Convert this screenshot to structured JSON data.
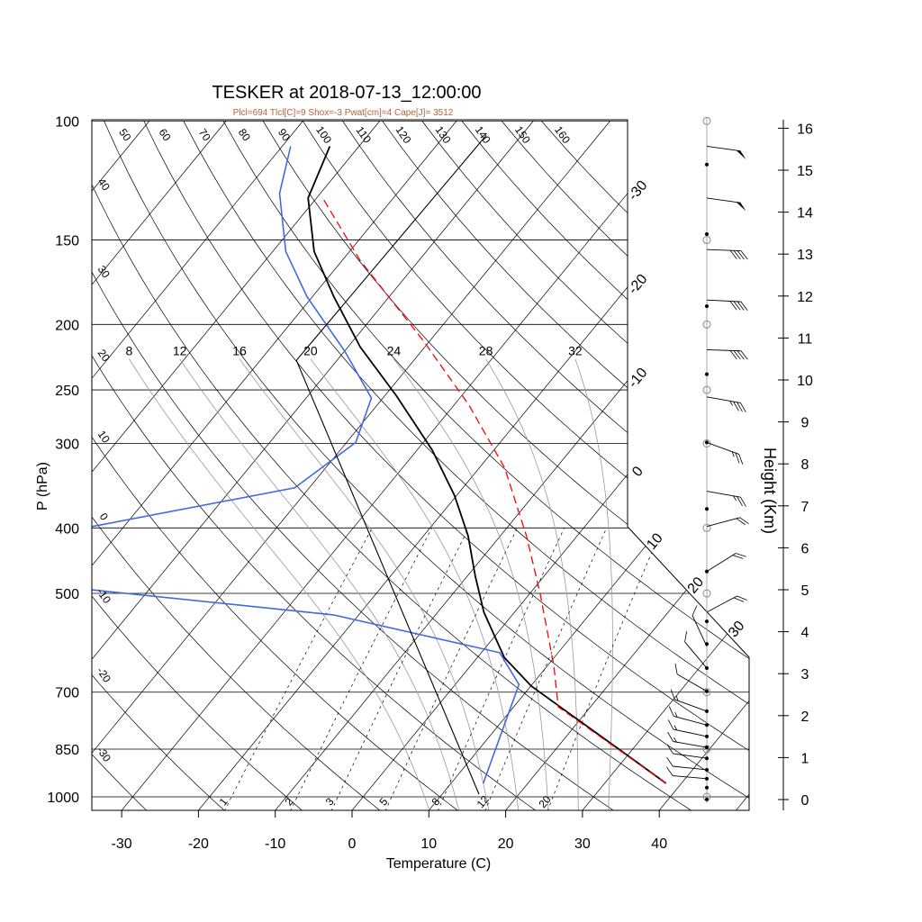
{
  "chart_data": {
    "type": "line",
    "subtype": "skew-t",
    "title": "TESKER at 2018-07-13_12:00:00",
    "subtitle": "Plcl=694 Tlcl[C]=9 Shox=-3 Pwat[cm]=4 Cape[J]= 3512",
    "xlabel": "Temperature (C)",
    "ylabel": "P (hPa)",
    "y2label": "Height (Km)",
    "x_ticks": [
      -30,
      -20,
      -10,
      0,
      10,
      20,
      30,
      40
    ],
    "p_ticks": [
      100,
      150,
      200,
      250,
      300,
      400,
      500,
      700,
      850,
      1000
    ],
    "height_ticks": [
      0,
      1,
      2,
      3,
      4,
      5,
      6,
      7,
      8,
      9,
      10,
      11,
      12,
      13,
      14,
      15,
      16
    ],
    "xlim_at_bottom": [
      -34,
      52
    ],
    "plim": [
      1050,
      100
    ],
    "isotherms": [
      -100,
      -90,
      -80,
      -70,
      -60,
      -50,
      -40,
      -30,
      -20,
      -10,
      0,
      10,
      20,
      30,
      40,
      50
    ],
    "isotherm_labels": [
      "-30",
      "-20",
      "-10",
      "0",
      "10",
      "20",
      "30"
    ],
    "dry_adiabats_thetaC": [
      -30,
      -20,
      -10,
      0,
      10,
      20,
      30,
      40,
      50,
      60,
      70,
      80,
      90,
      100,
      110,
      120,
      130,
      140,
      150,
      160
    ],
    "moist_adiabats_C": [
      8,
      12,
      16,
      20,
      24,
      28,
      32
    ],
    "mixing_ratios_gkg": [
      1,
      2,
      3,
      5,
      8,
      12,
      20
    ],
    "series": [
      {
        "name": "temperature",
        "color": "#000000",
        "p": [
          955,
          850,
          686,
          622,
          533,
          471,
          411,
          358,
          307,
          255,
          216,
          182,
          156,
          130,
          109
        ],
        "T": [
          38.0,
          28.2,
          10.1,
          3.5,
          -4.0,
          -9.0,
          -14.2,
          -20.3,
          -28.0,
          -38.5,
          -48.4,
          -57.2,
          -64.6,
          -71.1,
          -73.8
        ]
      },
      {
        "name": "dewpoint",
        "color": "#4169e1",
        "p": [
          955,
          819,
          682,
          612,
          538,
          494,
          450,
          398,
          349,
          299,
          257,
          219,
          182,
          156,
          128,
          109
        ],
        "T": [
          14.2,
          11.5,
          8.3,
          2.4,
          -23.3,
          -57.4,
          -80,
          -64.1,
          -41.9,
          -38.8,
          -41.5,
          -50.0,
          -60.7,
          -68.3,
          -75.3,
          -78.9
        ]
      },
      {
        "name": "parcel",
        "color": "#ff0000",
        "p": [
          955,
          736,
          641,
          501,
          411,
          326,
          263,
          212,
          161,
          130
        ],
        "T": [
          38.0,
          15.8,
          10.9,
          1.4,
          -6.6,
          -16.7,
          -28.1,
          -40.7,
          -57.6,
          -69.2
        ]
      },
      {
        "name": "reference",
        "color": "#000000",
        "p": [
          991,
          226,
          105
        ],
        "T": [
          14.8,
          -55.3,
          -54.6
        ]
      }
    ],
    "wind": [
      {
        "p": 109,
        "speed_kt": 50,
        "dir_deg": 98
      },
      {
        "p": 130,
        "speed_kt": 50,
        "dir_deg": 98
      },
      {
        "p": 155,
        "speed_kt": 40,
        "dir_deg": 92
      },
      {
        "p": 184,
        "speed_kt": 40,
        "dir_deg": 93
      },
      {
        "p": 218,
        "speed_kt": 40,
        "dir_deg": 92
      },
      {
        "p": 256,
        "speed_kt": 35,
        "dir_deg": 100
      },
      {
        "p": 299,
        "speed_kt": 25,
        "dir_deg": 110
      },
      {
        "p": 353,
        "speed_kt": 25,
        "dir_deg": 100
      },
      {
        "p": 398,
        "speed_kt": 20,
        "dir_deg": 75
      },
      {
        "p": 464,
        "speed_kt": 20,
        "dir_deg": 58
      },
      {
        "p": 533,
        "speed_kt": 20,
        "dir_deg": 62
      },
      {
        "p": 599,
        "speed_kt": 10,
        "dir_deg": 335
      },
      {
        "p": 645,
        "speed_kt": 10,
        "dir_deg": 320
      },
      {
        "p": 698,
        "speed_kt": 10,
        "dir_deg": 300
      },
      {
        "p": 747,
        "speed_kt": 15,
        "dir_deg": 290
      },
      {
        "p": 783,
        "speed_kt": 15,
        "dir_deg": 285
      },
      {
        "p": 814,
        "speed_kt": 15,
        "dir_deg": 282
      },
      {
        "p": 845,
        "speed_kt": 15,
        "dir_deg": 280
      },
      {
        "p": 877,
        "speed_kt": 10,
        "dir_deg": 278
      },
      {
        "p": 912,
        "speed_kt": 10,
        "dir_deg": 276
      },
      {
        "p": 940,
        "speed_kt": 10,
        "dir_deg": 275
      }
    ],
    "data_levels_p": [
      116,
      147,
      188,
      237,
      299,
      375,
      464,
      550,
      594,
      645,
      698,
      747,
      783,
      814,
      845,
      877,
      912,
      940,
      969,
      1009
    ],
    "colors": {
      "subtitle": "#b5623a",
      "dewpoint": "#4169e1",
      "parcel": "#ff0000",
      "grid": "#000000",
      "moist": "#999999",
      "wind_column": "#aaaaaa"
    }
  }
}
